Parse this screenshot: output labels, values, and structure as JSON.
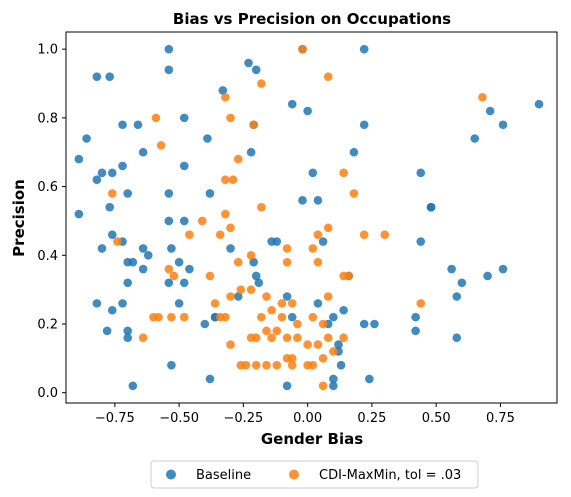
{
  "chart_data": {
    "type": "scatter",
    "title": "Bias vs Precision on Occupations",
    "xlabel": "Gender Bias",
    "ylabel": "Precision",
    "xlim": [
      -0.94,
      0.97
    ],
    "ylim": [
      -0.03,
      1.05
    ],
    "xticks": [
      -0.75,
      -0.5,
      -0.25,
      0.0,
      0.25,
      0.5,
      0.75
    ],
    "xtick_labels": [
      "−0.75",
      "−0.50",
      "−0.25",
      "0.00",
      "0.25",
      "0.50",
      "0.75"
    ],
    "yticks": [
      0.0,
      0.2,
      0.4,
      0.6,
      0.8,
      1.0
    ],
    "ytick_labels": [
      "0.0",
      "0.2",
      "0.4",
      "0.6",
      "0.8",
      "1.0"
    ],
    "grid": false,
    "legend_position": "below-center",
    "series": [
      {
        "name": "Baseline",
        "color": "#1f77b4",
        "points": [
          [
            -0.54,
            1.0
          ],
          [
            -0.23,
            0.96
          ],
          [
            -0.02,
            1.0
          ],
          [
            0.22,
            1.0
          ],
          [
            -0.82,
            0.92
          ],
          [
            -0.77,
            0.92
          ],
          [
            -0.54,
            0.94
          ],
          [
            -0.33,
            0.88
          ],
          [
            -0.2,
            0.94
          ],
          [
            -0.06,
            0.84
          ],
          [
            0.0,
            0.82
          ],
          [
            0.71,
            0.82
          ],
          [
            0.9,
            0.84
          ],
          [
            -0.72,
            0.78
          ],
          [
            -0.66,
            0.78
          ],
          [
            -0.48,
            0.8
          ],
          [
            -0.21,
            0.78
          ],
          [
            0.22,
            0.78
          ],
          [
            0.76,
            0.78
          ],
          [
            -0.86,
            0.74
          ],
          [
            -0.39,
            0.74
          ],
          [
            0.65,
            0.74
          ],
          [
            -0.89,
            0.68
          ],
          [
            -0.64,
            0.7
          ],
          [
            -0.22,
            0.7
          ],
          [
            0.18,
            0.7
          ],
          [
            -0.82,
            0.62
          ],
          [
            -0.8,
            0.64
          ],
          [
            -0.76,
            0.64
          ],
          [
            -0.72,
            0.66
          ],
          [
            -0.48,
            0.66
          ],
          [
            0.02,
            0.64
          ],
          [
            0.44,
            0.64
          ],
          [
            -0.7,
            0.58
          ],
          [
            -0.54,
            0.58
          ],
          [
            -0.38,
            0.58
          ],
          [
            -0.77,
            0.54
          ],
          [
            -0.02,
            0.56
          ],
          [
            0.04,
            0.56
          ],
          [
            0.48,
            0.54
          ],
          [
            0.48,
            0.54
          ],
          [
            -0.89,
            0.52
          ],
          [
            -0.54,
            0.5
          ],
          [
            -0.48,
            0.5
          ],
          [
            -0.76,
            0.46
          ],
          [
            -0.72,
            0.44
          ],
          [
            -0.8,
            0.42
          ],
          [
            -0.64,
            0.42
          ],
          [
            -0.53,
            0.42
          ],
          [
            -0.3,
            0.42
          ],
          [
            -0.14,
            0.44
          ],
          [
            -0.12,
            0.44
          ],
          [
            0.06,
            0.44
          ],
          [
            0.44,
            0.44
          ],
          [
            -0.7,
            0.38
          ],
          [
            -0.68,
            0.38
          ],
          [
            -0.62,
            0.4
          ],
          [
            -0.64,
            0.36
          ],
          [
            -0.5,
            0.38
          ],
          [
            -0.46,
            0.36
          ],
          [
            -0.21,
            0.38
          ],
          [
            -0.2,
            0.34
          ],
          [
            0.16,
            0.34
          ],
          [
            0.56,
            0.36
          ],
          [
            0.76,
            0.36
          ],
          [
            -0.7,
            0.32
          ],
          [
            -0.54,
            0.32
          ],
          [
            -0.48,
            0.32
          ],
          [
            -0.19,
            0.32
          ],
          [
            0.6,
            0.32
          ],
          [
            0.7,
            0.34
          ],
          [
            -0.82,
            0.26
          ],
          [
            -0.76,
            0.24
          ],
          [
            -0.72,
            0.26
          ],
          [
            -0.5,
            0.26
          ],
          [
            -0.36,
            0.22
          ],
          [
            -0.27,
            0.28
          ],
          [
            -0.08,
            0.28
          ],
          [
            -0.06,
            0.22
          ],
          [
            0.04,
            0.26
          ],
          [
            0.08,
            0.2
          ],
          [
            0.1,
            0.22
          ],
          [
            0.14,
            0.24
          ],
          [
            0.22,
            0.2
          ],
          [
            0.26,
            0.2
          ],
          [
            0.42,
            0.22
          ],
          [
            0.58,
            0.28
          ],
          [
            -0.78,
            0.18
          ],
          [
            -0.7,
            0.18
          ],
          [
            -0.7,
            0.16
          ],
          [
            -0.4,
            0.2
          ],
          [
            -0.36,
            0.22
          ],
          [
            0.42,
            0.18
          ],
          [
            0.58,
            0.16
          ],
          [
            0.12,
            0.14
          ],
          [
            0.12,
            0.12
          ],
          [
            0.1,
            0.04
          ],
          [
            0.1,
            0.02
          ],
          [
            -0.68,
            0.02
          ],
          [
            -0.53,
            0.08
          ],
          [
            -0.38,
            0.04
          ],
          [
            -0.08,
            0.02
          ],
          [
            0.13,
            0.08
          ],
          [
            0.24,
            0.04
          ]
        ]
      },
      {
        "name": "CDI-MaxMin, tol = .03",
        "color": "#ff7f0e",
        "points": [
          [
            -0.02,
            1.0
          ],
          [
            0.08,
            0.92
          ],
          [
            -0.18,
            0.9
          ],
          [
            -0.32,
            0.86
          ],
          [
            -0.3,
            0.8
          ],
          [
            -0.21,
            0.78
          ],
          [
            0.68,
            0.86
          ],
          [
            -0.59,
            0.8
          ],
          [
            -0.57,
            0.72
          ],
          [
            -0.27,
            0.68
          ],
          [
            -0.32,
            0.62
          ],
          [
            -0.29,
            0.62
          ],
          [
            0.14,
            0.64
          ],
          [
            -0.76,
            0.58
          ],
          [
            0.18,
            0.58
          ],
          [
            -0.18,
            0.54
          ],
          [
            -0.32,
            0.52
          ],
          [
            -0.3,
            0.48
          ],
          [
            -0.41,
            0.5
          ],
          [
            0.08,
            0.48
          ],
          [
            0.04,
            0.46
          ],
          [
            0.22,
            0.46
          ],
          [
            0.3,
            0.46
          ],
          [
            -0.74,
            0.44
          ],
          [
            -0.46,
            0.46
          ],
          [
            -0.34,
            0.46
          ],
          [
            -0.08,
            0.42
          ],
          [
            0.02,
            0.42
          ],
          [
            -0.27,
            0.38
          ],
          [
            -0.22,
            0.4
          ],
          [
            -0.08,
            0.38
          ],
          [
            0.04,
            0.38
          ],
          [
            0.14,
            0.34
          ],
          [
            0.16,
            0.34
          ],
          [
            -0.54,
            0.36
          ],
          [
            -0.52,
            0.34
          ],
          [
            -0.38,
            0.34
          ],
          [
            -0.3,
            0.28
          ],
          [
            -0.26,
            0.3
          ],
          [
            -0.16,
            0.28
          ],
          [
            -0.1,
            0.26
          ],
          [
            0.08,
            0.28
          ],
          [
            -0.22,
            0.3
          ],
          [
            -0.6,
            0.22
          ],
          [
            -0.58,
            0.22
          ],
          [
            -0.53,
            0.22
          ],
          [
            -0.48,
            0.22
          ],
          [
            -0.36,
            0.26
          ],
          [
            -0.34,
            0.22
          ],
          [
            -0.32,
            0.22
          ],
          [
            -0.18,
            0.22
          ],
          [
            -0.14,
            0.24
          ],
          [
            -0.1,
            0.22
          ],
          [
            -0.06,
            0.26
          ],
          [
            -0.04,
            0.2
          ],
          [
            0.02,
            0.22
          ],
          [
            0.06,
            0.2
          ],
          [
            0.44,
            0.26
          ],
          [
            -0.64,
            0.16
          ],
          [
            -0.3,
            0.14
          ],
          [
            -0.22,
            0.16
          ],
          [
            -0.2,
            0.16
          ],
          [
            -0.16,
            0.18
          ],
          [
            -0.14,
            0.16
          ],
          [
            -0.12,
            0.18
          ],
          [
            -0.08,
            0.16
          ],
          [
            -0.04,
            0.16
          ],
          [
            0.0,
            0.14
          ],
          [
            0.04,
            0.14
          ],
          [
            0.06,
            0.1
          ],
          [
            0.08,
            0.16
          ],
          [
            0.1,
            0.12
          ],
          [
            0.14,
            0.16
          ],
          [
            -0.26,
            0.08
          ],
          [
            -0.24,
            0.08
          ],
          [
            -0.2,
            0.08
          ],
          [
            -0.16,
            0.08
          ],
          [
            -0.12,
            0.08
          ],
          [
            -0.08,
            0.1
          ],
          [
            -0.06,
            0.1
          ],
          [
            0.0,
            0.08
          ],
          [
            0.02,
            0.08
          ],
          [
            0.06,
            0.02
          ],
          [
            -0.06,
            0.08
          ]
        ]
      }
    ]
  },
  "legend": {
    "items": [
      {
        "label": "Baseline",
        "color": "#1f77b4"
      },
      {
        "label": "CDI-MaxMin, tol = .03",
        "color": "#ff7f0e"
      }
    ]
  }
}
